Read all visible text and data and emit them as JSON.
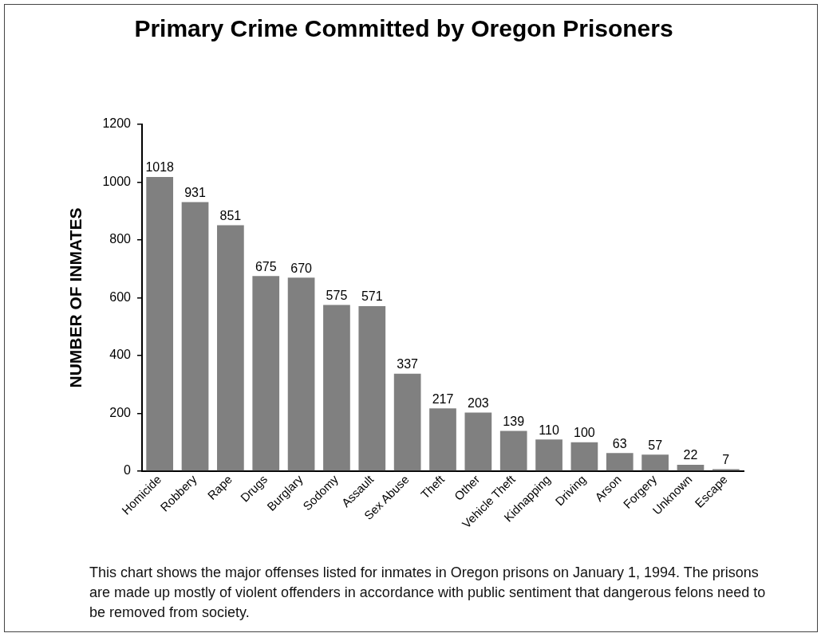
{
  "chart_data": {
    "type": "bar",
    "title": "Primary Crime Committed by Oregon Prisoners",
    "ylabel": "NUMBER OF INMATES",
    "categories": [
      "Homicide",
      "Robbery",
      "Rape",
      "Drugs",
      "Burglary",
      "Sodomy",
      "Assault",
      "Sex Abuse",
      "Theft",
      "Other",
      "Vehicle Theft",
      "Kidnapping",
      "Driving",
      "Arson",
      "Forgery",
      "Unknown",
      "Escape"
    ],
    "values": [
      1018,
      931,
      851,
      675,
      670,
      575,
      571,
      337,
      217,
      203,
      139,
      110,
      100,
      63,
      57,
      22,
      7
    ],
    "color": "#808080",
    "ylim": [
      0,
      1200
    ],
    "yticks": [
      0,
      200,
      400,
      600,
      800,
      1000,
      1200
    ],
    "data_labels": true,
    "annotations": [
      "This chart shows the major offenses listed for inmates in Oregon prisons on January 1, 1994. The prisons are made up mostly of violent offenders in accordance with public sentiment that dangerous felons need to be removed from society."
    ]
  }
}
